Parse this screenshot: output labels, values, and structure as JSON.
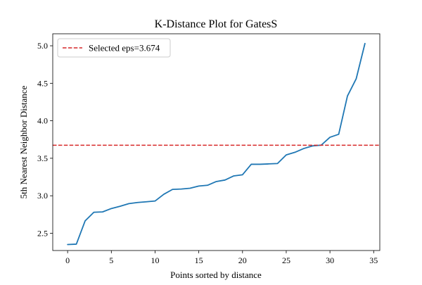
{
  "chart_data": {
    "type": "line",
    "title": "K-Distance Plot for GatesS",
    "xlabel": "Points sorted by distance",
    "ylabel": "5th Nearest Neighbor Distance",
    "xlim": [
      -1.7,
      35.7
    ],
    "ylim": [
      2.27,
      5.16
    ],
    "xticks": [
      0,
      5,
      10,
      15,
      20,
      25,
      30,
      35
    ],
    "yticks": [
      2.5,
      3.0,
      3.5,
      4.0,
      4.5,
      5.0
    ],
    "xtick_labels": [
      "0",
      "5",
      "10",
      "15",
      "20",
      "25",
      "30",
      "35"
    ],
    "ytick_labels": [
      "2.5",
      "3.0",
      "3.5",
      "4.0",
      "4.5",
      "5.0"
    ],
    "grid": false,
    "legend_position": "top-left",
    "series": [
      {
        "color": "#1f77b4",
        "x": [
          0,
          1,
          2,
          3,
          4,
          5,
          6,
          7,
          8,
          9,
          10,
          11,
          12,
          13,
          14,
          15,
          16,
          17,
          18,
          19,
          20,
          21,
          22,
          23,
          24,
          25,
          26,
          27,
          28,
          29,
          30,
          31,
          32,
          33,
          34
        ],
        "y": [
          2.35,
          2.355,
          2.665,
          2.78,
          2.785,
          2.83,
          2.86,
          2.895,
          2.91,
          2.92,
          2.93,
          3.02,
          3.085,
          3.09,
          3.1,
          3.13,
          3.14,
          3.19,
          3.21,
          3.265,
          3.28,
          3.42,
          3.42,
          3.425,
          3.43,
          3.545,
          3.58,
          3.63,
          3.665,
          3.675,
          3.78,
          3.82,
          4.33,
          4.56,
          5.03
        ]
      }
    ],
    "reference_line": {
      "orientation": "horizontal",
      "y": 3.674,
      "color": "#d62728",
      "style": "dashed",
      "label": "Selected eps=3.674"
    }
  }
}
